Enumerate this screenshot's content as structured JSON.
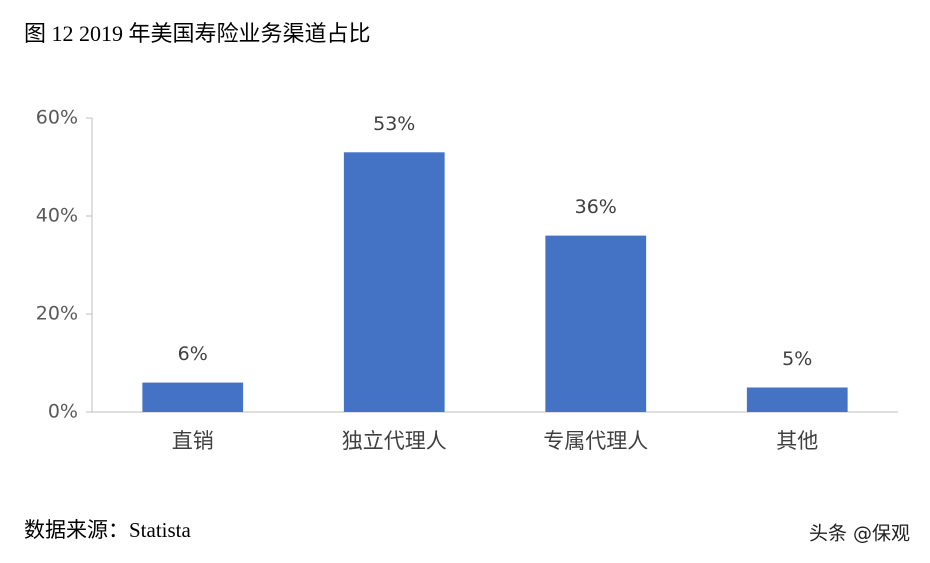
{
  "chart_data": {
    "type": "bar",
    "title": "图 12 2019 年美国寿险业务渠道占比",
    "categories": [
      "直销",
      "独立代理人",
      "专属代理人",
      "其他"
    ],
    "values": [
      6,
      53,
      36,
      5
    ],
    "value_labels": [
      "6%",
      "53%",
      "36%",
      "5%"
    ],
    "color": "#4472c4",
    "ylim": [
      0,
      60
    ],
    "yticks": [
      {
        "value": 0,
        "label": "0%"
      },
      {
        "value": 20,
        "label": "20%"
      },
      {
        "value": 40,
        "label": "40%"
      },
      {
        "value": 60,
        "label": "60%"
      }
    ],
    "grid": false
  },
  "source": "数据来源：Statista",
  "watermark": "头条 @保观"
}
